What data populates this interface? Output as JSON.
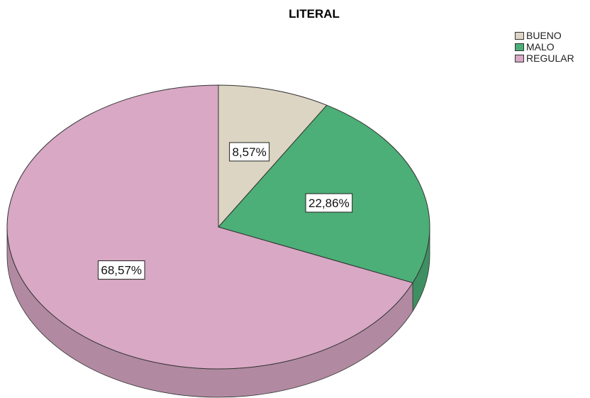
{
  "chart_data": {
    "type": "pie",
    "title": "LITERAL",
    "categories": [
      "BUENO",
      "MALO",
      "REGULAR"
    ],
    "values": [
      8.57,
      22.86,
      68.57
    ],
    "labels": [
      "8,57%",
      "22,86%",
      "68,57%"
    ],
    "colors": [
      "#dcd5c3",
      "#4caf77",
      "#d8a8c4"
    ],
    "legend": "top-right",
    "style": "3d"
  }
}
